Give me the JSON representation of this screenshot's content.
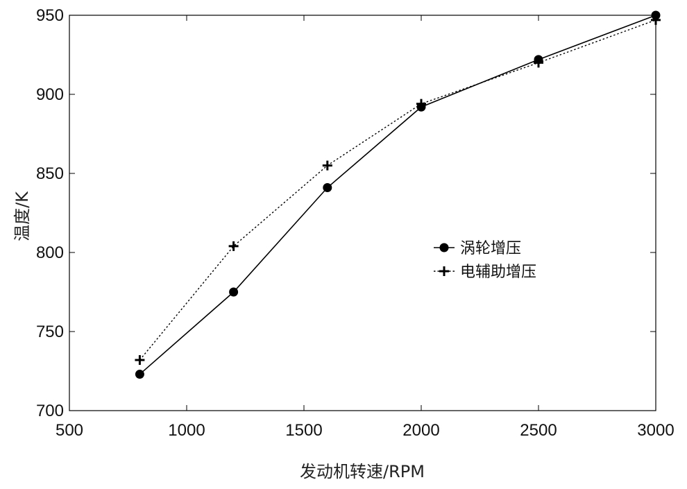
{
  "chart_data": {
    "type": "line",
    "xlabel": "发动机转速/RPM",
    "ylabel": "温度/K",
    "xlim": [
      500,
      3000
    ],
    "ylim": [
      700,
      950
    ],
    "xticks": [
      500,
      1000,
      1500,
      2000,
      2500,
      3000
    ],
    "yticks": [
      700,
      750,
      800,
      850,
      900,
      950
    ],
    "grid": false,
    "legend_position": "center-right",
    "series": [
      {
        "name": "涡轮增压",
        "marker": "circle",
        "line_style": "solid",
        "color": "#000000",
        "x": [
          800,
          1200,
          1600,
          2000,
          2500,
          3000
        ],
        "y": [
          723,
          775,
          841,
          892,
          922,
          950
        ]
      },
      {
        "name": "电辅助增压",
        "marker": "plus",
        "line_style": "dotted",
        "color": "#000000",
        "x": [
          800,
          1200,
          1600,
          2000,
          2500,
          3000
        ],
        "y": [
          732,
          804,
          855,
          894,
          920,
          947
        ]
      }
    ]
  }
}
